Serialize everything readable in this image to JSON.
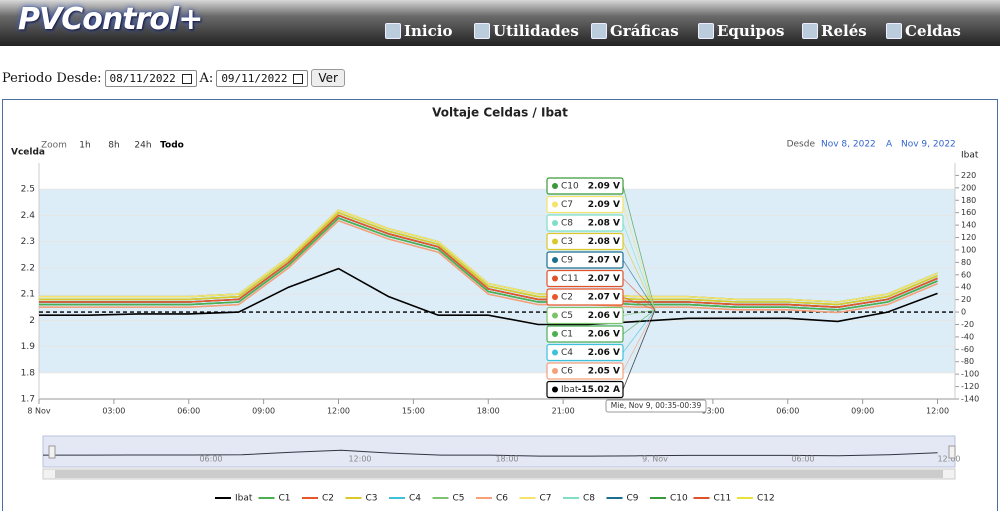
{
  "logo": "PVControl+",
  "nav": [
    "Inicio",
    "Utilidades",
    "Gráficas",
    "Equipos",
    "Relés",
    "Celdas"
  ],
  "form": {
    "label_from": "Periodo Desde:",
    "date_from": "08/11/2022",
    "label_to": "A:",
    "date_to": "09/11/2022",
    "button": "Ver"
  },
  "chart_data": {
    "type": "line",
    "title": "Voltaje Celdas / Ibat",
    "y_label": "Vcelda",
    "y2_label": "Ibat",
    "zoom": {
      "label": "Zoom",
      "buttons": [
        "1h",
        "8h",
        "24h",
        "Todo"
      ]
    },
    "range": {
      "from_label": "Desde",
      "from": "Nov 8, 2022",
      "to_label": "A",
      "to": "Nov 9, 2022"
    },
    "xlim": [
      0,
      36.7
    ],
    "xticks": [
      {
        "value": 0,
        "label": "8 Nov"
      },
      {
        "value": 3,
        "label": "03:00"
      },
      {
        "value": 6,
        "label": "06:00"
      },
      {
        "value": 9,
        "label": "09:00"
      },
      {
        "value": 12,
        "label": "12:00"
      },
      {
        "value": 15,
        "label": "15:00"
      },
      {
        "value": 18,
        "label": "18:00"
      },
      {
        "value": 21,
        "label": "21:00"
      },
      {
        "value": 27,
        "label": "03:00"
      },
      {
        "value": 30,
        "label": "06:00"
      },
      {
        "value": 33,
        "label": "09:00"
      },
      {
        "value": 36,
        "label": "12:00"
      }
    ],
    "ylim": [
      1.7,
      2.6
    ],
    "yticks": [
      1.7,
      1.8,
      1.9,
      2,
      2.1,
      2.2,
      2.3,
      2.4,
      2.5
    ],
    "y2lim": [
      -140,
      240
    ],
    "y2ticks": [
      -140,
      -120,
      -100,
      -80,
      -60,
      -40,
      -20,
      0,
      20,
      40,
      60,
      80,
      100,
      120,
      140,
      160,
      180,
      200,
      220
    ],
    "plot_band": [
      1.8,
      2.5
    ],
    "y2_reference_line": 0,
    "x": [
      0,
      2,
      4,
      6,
      8,
      10,
      12,
      14,
      16,
      18,
      20,
      22,
      24,
      26,
      28,
      30,
      32,
      34,
      36
    ],
    "series": [
      {
        "name": "Ibat",
        "color": "#000000",
        "axis": "y2",
        "values": [
          -5,
          -5,
          -3,
          -3,
          0,
          40,
          70,
          25,
          -5,
          -5,
          -20,
          -20,
          -15,
          -10,
          -10,
          -10,
          -15,
          0,
          30
        ]
      },
      {
        "name": "C1",
        "color": "#4caf50",
        "values": [
          2.06,
          2.06,
          2.06,
          2.06,
          2.07,
          2.21,
          2.39,
          2.32,
          2.27,
          2.11,
          2.07,
          2.07,
          2.06,
          2.06,
          2.05,
          2.05,
          2.04,
          2.07,
          2.15
        ]
      },
      {
        "name": "C2",
        "color": "#e8572a",
        "values": [
          2.07,
          2.07,
          2.07,
          2.07,
          2.08,
          2.22,
          2.4,
          2.33,
          2.28,
          2.12,
          2.08,
          2.08,
          2.07,
          2.07,
          2.06,
          2.06,
          2.05,
          2.08,
          2.16
        ]
      },
      {
        "name": "C3",
        "color": "#d9c92a",
        "values": [
          2.08,
          2.08,
          2.08,
          2.08,
          2.09,
          2.23,
          2.41,
          2.34,
          2.29,
          2.13,
          2.09,
          2.09,
          2.08,
          2.08,
          2.07,
          2.07,
          2.06,
          2.09,
          2.17
        ]
      },
      {
        "name": "C4",
        "color": "#3fc1d9",
        "values": [
          2.06,
          2.06,
          2.06,
          2.06,
          2.07,
          2.21,
          2.39,
          2.32,
          2.27,
          2.11,
          2.07,
          2.07,
          2.06,
          2.06,
          2.05,
          2.05,
          2.04,
          2.07,
          2.15
        ]
      },
      {
        "name": "C5",
        "color": "#7cc46b",
        "values": [
          2.06,
          2.06,
          2.06,
          2.06,
          2.07,
          2.21,
          2.39,
          2.32,
          2.27,
          2.11,
          2.07,
          2.07,
          2.06,
          2.06,
          2.05,
          2.05,
          2.04,
          2.07,
          2.15
        ]
      },
      {
        "name": "C6",
        "color": "#f4a07a",
        "values": [
          2.05,
          2.05,
          2.05,
          2.05,
          2.06,
          2.2,
          2.38,
          2.31,
          2.26,
          2.1,
          2.06,
          2.06,
          2.05,
          2.05,
          2.04,
          2.04,
          2.03,
          2.06,
          2.14
        ]
      },
      {
        "name": "C7",
        "color": "#f6e36b",
        "values": [
          2.09,
          2.09,
          2.09,
          2.09,
          2.1,
          2.24,
          2.42,
          2.35,
          2.3,
          2.14,
          2.1,
          2.1,
          2.09,
          2.09,
          2.08,
          2.08,
          2.07,
          2.1,
          2.18
        ]
      },
      {
        "name": "C8",
        "color": "#7de0c6",
        "values": [
          2.08,
          2.08,
          2.08,
          2.08,
          2.09,
          2.23,
          2.41,
          2.34,
          2.29,
          2.13,
          2.09,
          2.09,
          2.08,
          2.08,
          2.07,
          2.07,
          2.06,
          2.09,
          2.17
        ]
      },
      {
        "name": "C9",
        "color": "#1a6f8f",
        "values": [
          2.07,
          2.07,
          2.07,
          2.07,
          2.08,
          2.22,
          2.4,
          2.33,
          2.28,
          2.12,
          2.08,
          2.08,
          2.07,
          2.07,
          2.06,
          2.06,
          2.05,
          2.08,
          2.16
        ]
      },
      {
        "name": "C10",
        "color": "#3a9a3a",
        "values": [
          2.09,
          2.09,
          2.09,
          2.09,
          2.1,
          2.24,
          2.42,
          2.35,
          2.3,
          2.14,
          2.1,
          2.1,
          2.09,
          2.09,
          2.08,
          2.08,
          2.07,
          2.1,
          2.18
        ]
      },
      {
        "name": "C11",
        "color": "#e0532a",
        "values": [
          2.07,
          2.07,
          2.07,
          2.07,
          2.08,
          2.22,
          2.4,
          2.33,
          2.28,
          2.12,
          2.08,
          2.08,
          2.07,
          2.07,
          2.06,
          2.06,
          2.05,
          2.08,
          2.16
        ]
      },
      {
        "name": "C12",
        "color": "#e8e23a",
        "values": [
          2.08,
          2.08,
          2.08,
          2.08,
          2.09,
          2.23,
          2.41,
          2.34,
          2.29,
          2.13,
          2.09,
          2.09,
          2.08,
          2.08,
          2.07,
          2.07,
          2.06,
          2.09,
          2.17
        ]
      }
    ],
    "tooltip": {
      "header": "Mie, Nov 9, 00:35-00:39",
      "entries": [
        {
          "name": "C10",
          "color": "#3a9a3a",
          "value": 2.09,
          "label": "2.09 V"
        },
        {
          "name": "C7",
          "color": "#f6e36b",
          "value": 2.09,
          "label": "2.09 V"
        },
        {
          "name": "C8",
          "color": "#7de0c6",
          "value": 2.08,
          "label": "2.08 V"
        },
        {
          "name": "C3",
          "color": "#d9c92a",
          "value": 2.08,
          "label": "2.08 V"
        },
        {
          "name": "C9",
          "color": "#1a6f8f",
          "value": 2.07,
          "label": "2.07 V"
        },
        {
          "name": "C11",
          "color": "#e0532a",
          "value": 2.07,
          "label": "2.07 V"
        },
        {
          "name": "C2",
          "color": "#e8572a",
          "value": 2.07,
          "label": "2.07 V"
        },
        {
          "name": "C5",
          "color": "#7cc46b",
          "value": 2.06,
          "label": "2.06 V"
        },
        {
          "name": "C1",
          "color": "#4caf50",
          "value": 2.06,
          "label": "2.06 V"
        },
        {
          "name": "C4",
          "color": "#3fc1d9",
          "value": 2.06,
          "label": "2.06 V"
        },
        {
          "name": "C6",
          "color": "#f4a07a",
          "value": 2.05,
          "label": "2.05 V"
        },
        {
          "name": "Ibat",
          "color": "#000000",
          "value": -15.02,
          "label": "-15.02 A"
        }
      ]
    },
    "navigator": {
      "labels": [
        "06:00",
        "12:00",
        "18:00",
        "9. Nov",
        "06:00",
        "12:00"
      ]
    }
  }
}
